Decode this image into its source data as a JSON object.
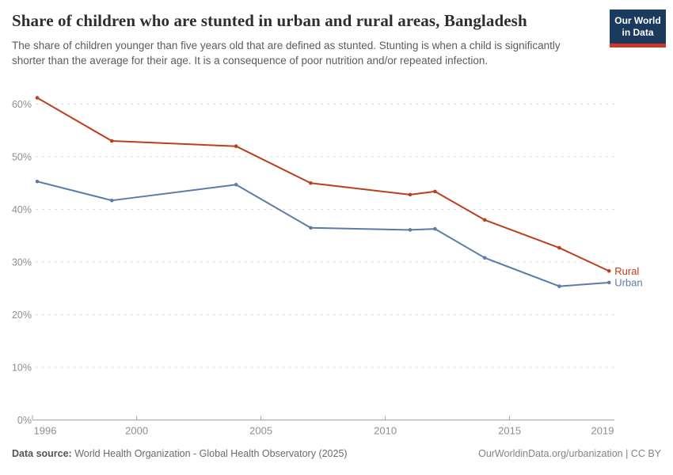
{
  "header": {
    "title": "Share of children who are stunted in urban and rural areas, Bangladesh",
    "subtitle": "The share of children younger than five years old that are defined as stunted. Stunting is when a child is significantly shorter than the average for their age. It is a consequence of poor nutrition and/or repeated infection."
  },
  "logo": {
    "line1": "Our World",
    "line2": "in Data",
    "bg_color": "#1a3a5e",
    "strip_color": "#d0362b"
  },
  "chart_data": {
    "type": "line",
    "title": "Share of children who are stunted in urban and rural areas, Bangladesh",
    "x": [
      1996,
      1999,
      2004,
      2007,
      2011,
      2012,
      2014,
      2017,
      2019
    ],
    "series": [
      {
        "name": "Rural",
        "color": "#bc3f1d",
        "values": [
          61.2,
          53.0,
          52.0,
          45.0,
          42.8,
          43.4,
          38.0,
          32.7,
          28.3
        ]
      },
      {
        "name": "Urban",
        "color": "#5b7ca8",
        "values": [
          45.3,
          41.7,
          44.7,
          36.5,
          36.1,
          36.3,
          30.8,
          25.4,
          26.1
        ]
      }
    ],
    "xlabel": "",
    "ylabel": "",
    "ylim": [
      0,
      60
    ],
    "yticks": [
      0,
      10,
      20,
      30,
      40,
      50,
      60
    ],
    "ytick_suffix": "%",
    "xticks": [
      1996,
      2000,
      2005,
      2010,
      2015,
      2019
    ],
    "xlim": [
      1995.8,
      2019.2
    ],
    "grid": "horizontal-dashed",
    "legend_position": "end-of-line labels at right",
    "tick_label_color": "#8e8e8e",
    "gridline_color": "#dcdcdc",
    "axis_color": "#a5a5a5"
  },
  "footer": {
    "source_label": "Data source:",
    "source_text": " World Health Organization - Global Health Observatory (2025)",
    "link": "OurWorldinData.org/urbanization | CC BY"
  }
}
